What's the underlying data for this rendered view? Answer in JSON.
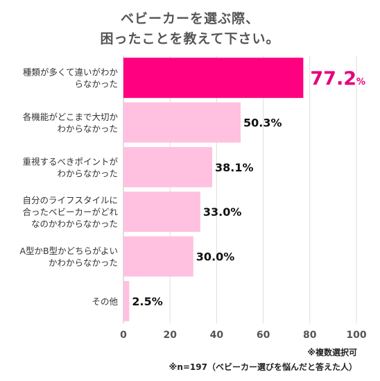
{
  "title_lines": [
    "ベビーカーを選ぶ際、",
    "困ったことを教えて下さい。"
  ],
  "footnotes": [
    "※複数選択可",
    "※n=197（ベビーカー選びを悩んだと答えた人）"
  ],
  "colors": {
    "highlight": "#ff0080",
    "bar": "#ffc1df",
    "highlight_text": "#e6007e",
    "value_text": "#111111",
    "grid": "#dddddd",
    "axis_text": "#555555"
  },
  "chart_data": {
    "type": "bar",
    "orientation": "horizontal",
    "title": "ベビーカーを選ぶ際、困ったことを教えて下さい。",
    "categories": [
      [
        "種類が多くて違いがわか",
        "らなかった"
      ],
      [
        "各機能がどこまで大切か",
        "わからなかった"
      ],
      [
        "重視するべきポイントが",
        "わからなかった"
      ],
      [
        "自分のライフスタイルに",
        "合ったベビーカーがどれ",
        "なのかわからなかった"
      ],
      [
        "A型かB型かどちらがよい",
        "かわからなかった"
      ],
      [
        "その他"
      ]
    ],
    "values": [
      77.2,
      50.3,
      38.1,
      33.0,
      30.0,
      2.5
    ],
    "value_labels": [
      "77.2",
      "50.3%",
      "38.1%",
      "33.0%",
      "30.0%",
      "2.5%"
    ],
    "highlight_unit": "%",
    "highlight_index": 0,
    "xlim": [
      0,
      100
    ],
    "xticks": [
      0,
      20,
      40,
      60,
      80,
      100
    ],
    "grid": true,
    "legend": "none"
  }
}
